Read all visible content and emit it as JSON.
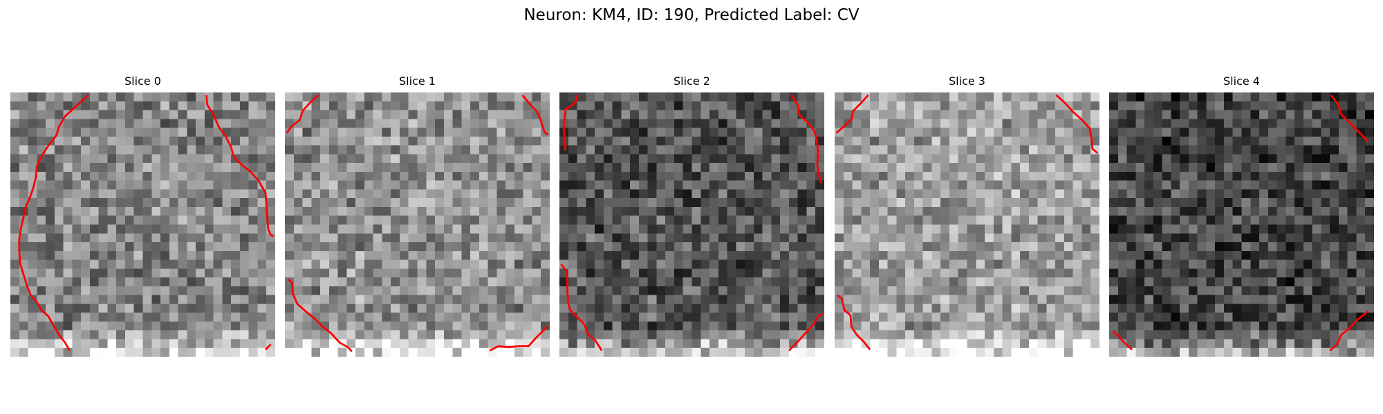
{
  "figure": {
    "title": "Neuron: KM4, ID: 190, Predicted Label: CV"
  },
  "slices": [
    {
      "title": "Slice 0",
      "mean_gray": 0.52
    },
    {
      "title": "Slice 1",
      "mean_gray": 0.56
    },
    {
      "title": "Slice 2",
      "mean_gray": 0.34
    },
    {
      "title": "Slice 3",
      "mean_gray": 0.62
    },
    {
      "title": "Slice 4",
      "mean_gray": 0.27
    }
  ],
  "colors": {
    "contour": "#ff0000",
    "background": "#ffffff"
  }
}
